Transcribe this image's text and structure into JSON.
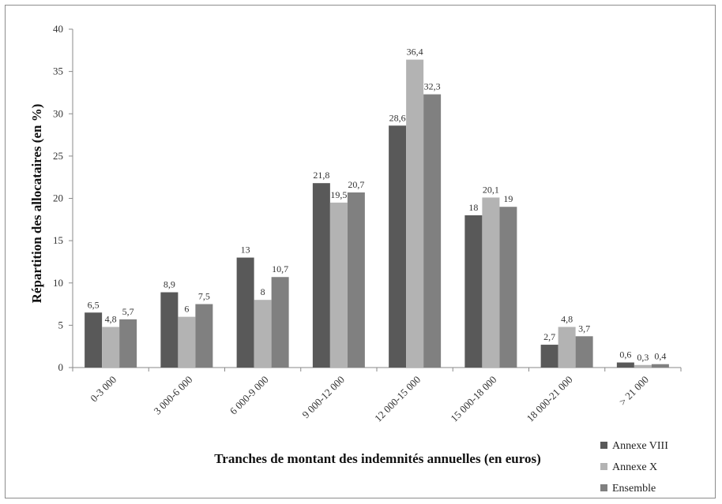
{
  "chart_data": {
    "type": "bar",
    "title": "",
    "xlabel": "Tranches de montant des indemnités annuelles (en euros)",
    "ylabel": "Répartition des allocataires (en %)",
    "ylim": [
      0,
      40
    ],
    "yticks": [
      0,
      5,
      10,
      15,
      20,
      25,
      30,
      35,
      40
    ],
    "grid": false,
    "legend_position": "bottom-right",
    "categories": [
      "0-3 000",
      "3 000-6 000",
      "6 000-9 000",
      "9 000-12 000",
      "12 000-15 000",
      "15 000-18 000",
      "18 000-21 000",
      "> 21 000"
    ],
    "series": [
      {
        "name": "Annexe VIII",
        "color": "#595959",
        "values": [
          6.5,
          8.9,
          13,
          21.8,
          28.6,
          18,
          2.7,
          0.6
        ],
        "labels": [
          "6,5",
          "8,9",
          "13",
          "21,8",
          "28,6",
          "18",
          "2,7",
          "0,6"
        ]
      },
      {
        "name": "Annexe X",
        "color": "#b3b3b3",
        "values": [
          4.8,
          6,
          8,
          19.5,
          36.4,
          20.1,
          4.8,
          0.3
        ],
        "labels": [
          "4,8",
          "6",
          "8",
          "19,5",
          "36,4",
          "20,1",
          "4,8",
          "0,3"
        ]
      },
      {
        "name": "Ensemble",
        "color": "#808080",
        "values": [
          5.7,
          7.5,
          10.7,
          20.7,
          32.3,
          19,
          3.7,
          0.4
        ],
        "labels": [
          "5,7",
          "7,5",
          "10,7",
          "20,7",
          "32,3",
          "19",
          "3,7",
          "0,4"
        ]
      }
    ]
  }
}
